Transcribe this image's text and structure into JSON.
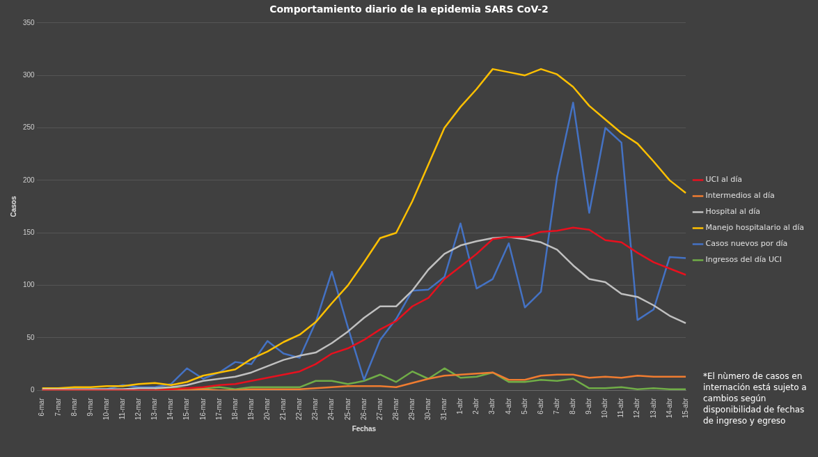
{
  "chart_data": {
    "type": "line",
    "title": "Comportamiento diario de la epidemia SARS CoV-2",
    "xlabel": "Fechas",
    "ylabel": "Casos",
    "categories": [
      "6-mar",
      "7-mar",
      "8-mar",
      "9-mar",
      "10-mar",
      "11-mar",
      "12-mar",
      "13-mar",
      "14-mar",
      "15-mar",
      "16-mar",
      "17-mar",
      "18-mar",
      "19-mar",
      "20-mar",
      "21-mar",
      "22-mar",
      "23-mar",
      "24-mar",
      "25-mar",
      "26-mar",
      "27-mar",
      "28-mar",
      "29-mar",
      "30-mar",
      "31-mar",
      "1-abr",
      "2-abr",
      "3-abr",
      "4-abr",
      "5-abr",
      "6-abr",
      "7-abr",
      "8-abr",
      "9-abr",
      "10-abr",
      "11-abr",
      "12-abr",
      "13-abr",
      "14-abr",
      "15-abr"
    ],
    "ylim": [
      0,
      350
    ],
    "yticks": [
      0,
      50,
      100,
      150,
      200,
      250,
      300,
      350
    ],
    "grid": "y",
    "legend": "right",
    "marker": "none",
    "line_style": "solid",
    "series": [
      {
        "name": "UCI al día",
        "color": "#e8101e",
        "values": [
          0,
          0,
          0,
          0,
          0,
          0,
          0,
          0,
          1,
          2,
          3,
          5,
          6,
          9,
          12,
          15,
          18,
          25,
          35,
          40,
          48,
          58,
          66,
          80,
          88,
          106,
          118,
          130,
          144,
          146,
          146,
          151,
          152,
          155,
          153,
          143,
          141,
          131,
          122,
          116,
          110
        ]
      },
      {
        "name": "Intermedios al día",
        "color": "#f07c30",
        "values": [
          0,
          0,
          0,
          0,
          0,
          0,
          0,
          0,
          0,
          0,
          1,
          0,
          0,
          1,
          1,
          1,
          1,
          2,
          3,
          4,
          4,
          4,
          3,
          7,
          11,
          14,
          15,
          16,
          17,
          10,
          10,
          14,
          15,
          15,
          12,
          13,
          12,
          14,
          13,
          13,
          13
        ]
      },
      {
        "name": "Hospital al día",
        "color": "#c0c0c0",
        "values": [
          1,
          1,
          1,
          1,
          1,
          1,
          2,
          2,
          3,
          5,
          9,
          11,
          13,
          17,
          23,
          29,
          33,
          36,
          45,
          56,
          69,
          80,
          80,
          95,
          115,
          130,
          138,
          142,
          145,
          146,
          144,
          141,
          134,
          119,
          106,
          103,
          92,
          89,
          81,
          71,
          64
        ]
      },
      {
        "name": "Manejo hospitalario al día",
        "color": "#ffc000",
        "values": [
          2,
          2,
          3,
          3,
          4,
          4,
          6,
          7,
          5,
          8,
          14,
          17,
          20,
          30,
          37,
          46,
          53,
          65,
          83,
          100,
          122,
          145,
          150,
          180,
          215,
          250,
          270,
          287,
          306,
          303,
          300,
          306,
          301,
          289,
          271,
          258,
          245,
          235,
          218,
          200,
          188
        ]
      },
      {
        "name": "Casos nuevos por día",
        "color": "#4472c4",
        "values": [
          null,
          null,
          null,
          1,
          1,
          5,
          3,
          3,
          6,
          21,
          11,
          17,
          27,
          25,
          47,
          35,
          31,
          65,
          113,
          60,
          10,
          48,
          68,
          95,
          96,
          108,
          159,
          97,
          106,
          140,
          79,
          94,
          203,
          274,
          169,
          250,
          236,
          67,
          77,
          127,
          126
        ]
      },
      {
        "name": "Ingresos del día UCI",
        "color": "#70ad47",
        "values": [
          null,
          null,
          null,
          null,
          null,
          null,
          null,
          1,
          2,
          2,
          2,
          3,
          1,
          3,
          3,
          3,
          3,
          9,
          9,
          6,
          9,
          15,
          8,
          18,
          11,
          21,
          12,
          13,
          17,
          8,
          8,
          10,
          9,
          11,
          2,
          2,
          3,
          1,
          2,
          1,
          1
        ]
      }
    ],
    "annotations": [
      "*El nùmero de casos en internación está sujeto a cambios según disponibilidad de fechas de ingreso y egreso"
    ]
  }
}
